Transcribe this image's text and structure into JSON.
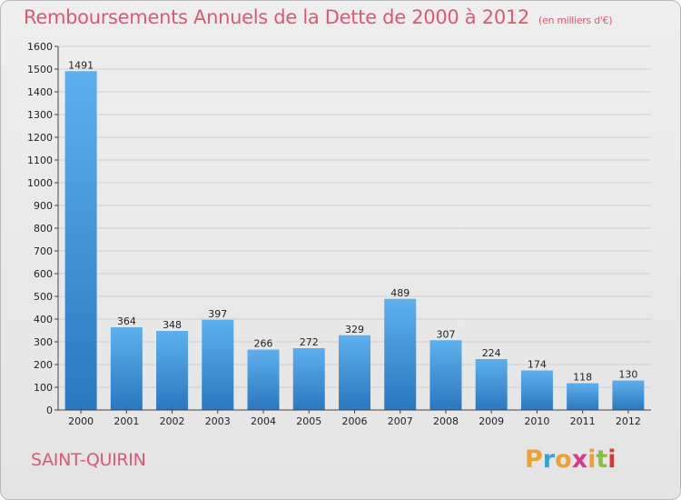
{
  "chart_data": {
    "type": "bar",
    "title": "Remboursements Annuels de la Dette de 2000 à 2012",
    "subtitle": "(en milliers d'€)",
    "categories": [
      "2000",
      "2001",
      "2002",
      "2003",
      "2004",
      "2005",
      "2006",
      "2007",
      "2008",
      "2009",
      "2010",
      "2011",
      "2012"
    ],
    "values": [
      1491,
      364,
      348,
      397,
      266,
      272,
      329,
      489,
      307,
      224,
      174,
      118,
      130
    ],
    "ylim": [
      0,
      1600
    ],
    "ytick_step": 100,
    "grid": true,
    "bar_color": "#3f8fd6"
  },
  "commune": "SAINT-QUIRIN",
  "logo": {
    "letters": [
      "P",
      "r",
      "o",
      "x",
      "i",
      "t",
      "i"
    ],
    "colors": [
      "#f0a030",
      "#3aa0d8",
      "#f0a030",
      "#d83a8a",
      "#f0a030",
      "#8ac040",
      "#d83a3a"
    ]
  },
  "colors": {
    "accent": "#e05870"
  }
}
